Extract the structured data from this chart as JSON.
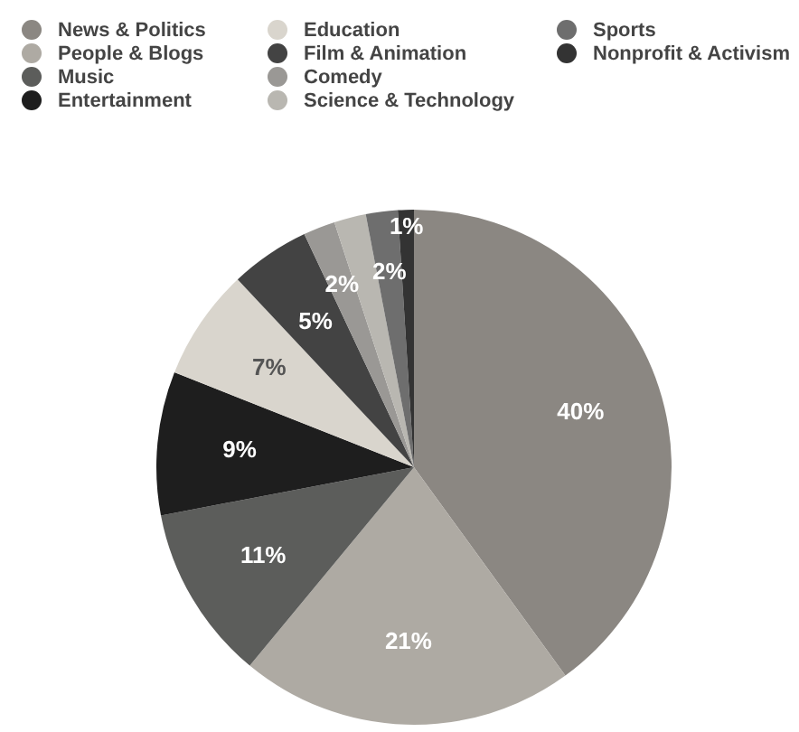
{
  "chart_data": {
    "type": "pie",
    "categories": [
      "News & Politics",
      "People & Blogs",
      "Music",
      "Entertainment",
      "Education",
      "Film & Animation",
      "Comedy",
      "Science & Technology",
      "Sports",
      "Nonprofit & Activism"
    ],
    "values": [
      40,
      21,
      11,
      9,
      7,
      5,
      2,
      2,
      2,
      1
    ],
    "colors": [
      "#8b8782",
      "#aeaaa3",
      "#5c5d5b",
      "#1e1e1e",
      "#d9d5cd",
      "#434343",
      "#9a9895",
      "#b9b7b1",
      "#6e6e6e",
      "#333333"
    ],
    "value_labels": [
      "40%",
      "21%",
      "11%",
      "9%",
      "7%",
      "5%",
      "2%",
      null,
      "2%",
      "1%"
    ],
    "legend": "top left"
  }
}
